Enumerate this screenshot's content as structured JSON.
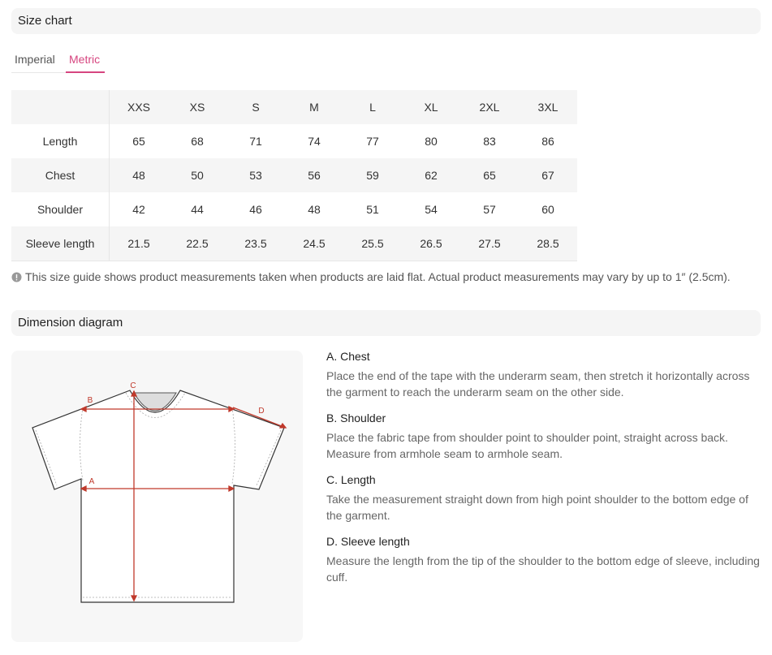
{
  "header": {
    "title": "Size chart"
  },
  "tabs": [
    "Imperial",
    "Metric"
  ],
  "table": {
    "columns": [
      "XXS",
      "XS",
      "S",
      "M",
      "L",
      "XL",
      "2XL",
      "3XL"
    ],
    "rows": [
      {
        "label": "Length",
        "values": [
          65,
          68,
          71,
          74,
          77,
          80,
          83,
          86
        ]
      },
      {
        "label": "Chest",
        "values": [
          48,
          50,
          53,
          56,
          59,
          62,
          65,
          67
        ]
      },
      {
        "label": "Shoulder",
        "values": [
          42,
          44,
          46,
          48,
          51,
          54,
          57,
          60
        ]
      },
      {
        "label": "Sleeve length",
        "values": [
          21.5,
          22.5,
          23.5,
          24.5,
          25.5,
          26.5,
          27.5,
          28.5
        ]
      }
    ]
  },
  "note": "This size guide shows product measurements taken when products are laid flat. Actual product measurements may vary by up to 1″ (2.5cm).",
  "diagram": {
    "title": "Dimension diagram",
    "labels": [
      "A",
      "B",
      "C",
      "D"
    ],
    "items": [
      {
        "title": "A. Chest",
        "text": "Place the end of the tape with the underarm seam, then stretch it horizontally across the garment to reach the underarm seam on the other side."
      },
      {
        "title": "B. Shoulder",
        "text": "Place the fabric tape from shoulder point to shoulder point, straight across back. Measure from armhole seam to armhole seam."
      },
      {
        "title": "C. Length",
        "text": "Take the measurement straight down from high point shoulder to the bottom edge of the garment."
      },
      {
        "title": "D. Sleeve length",
        "text": "Measure the length from the tip of the shoulder to the bottom edge of sleeve, including cuff."
      }
    ]
  }
}
